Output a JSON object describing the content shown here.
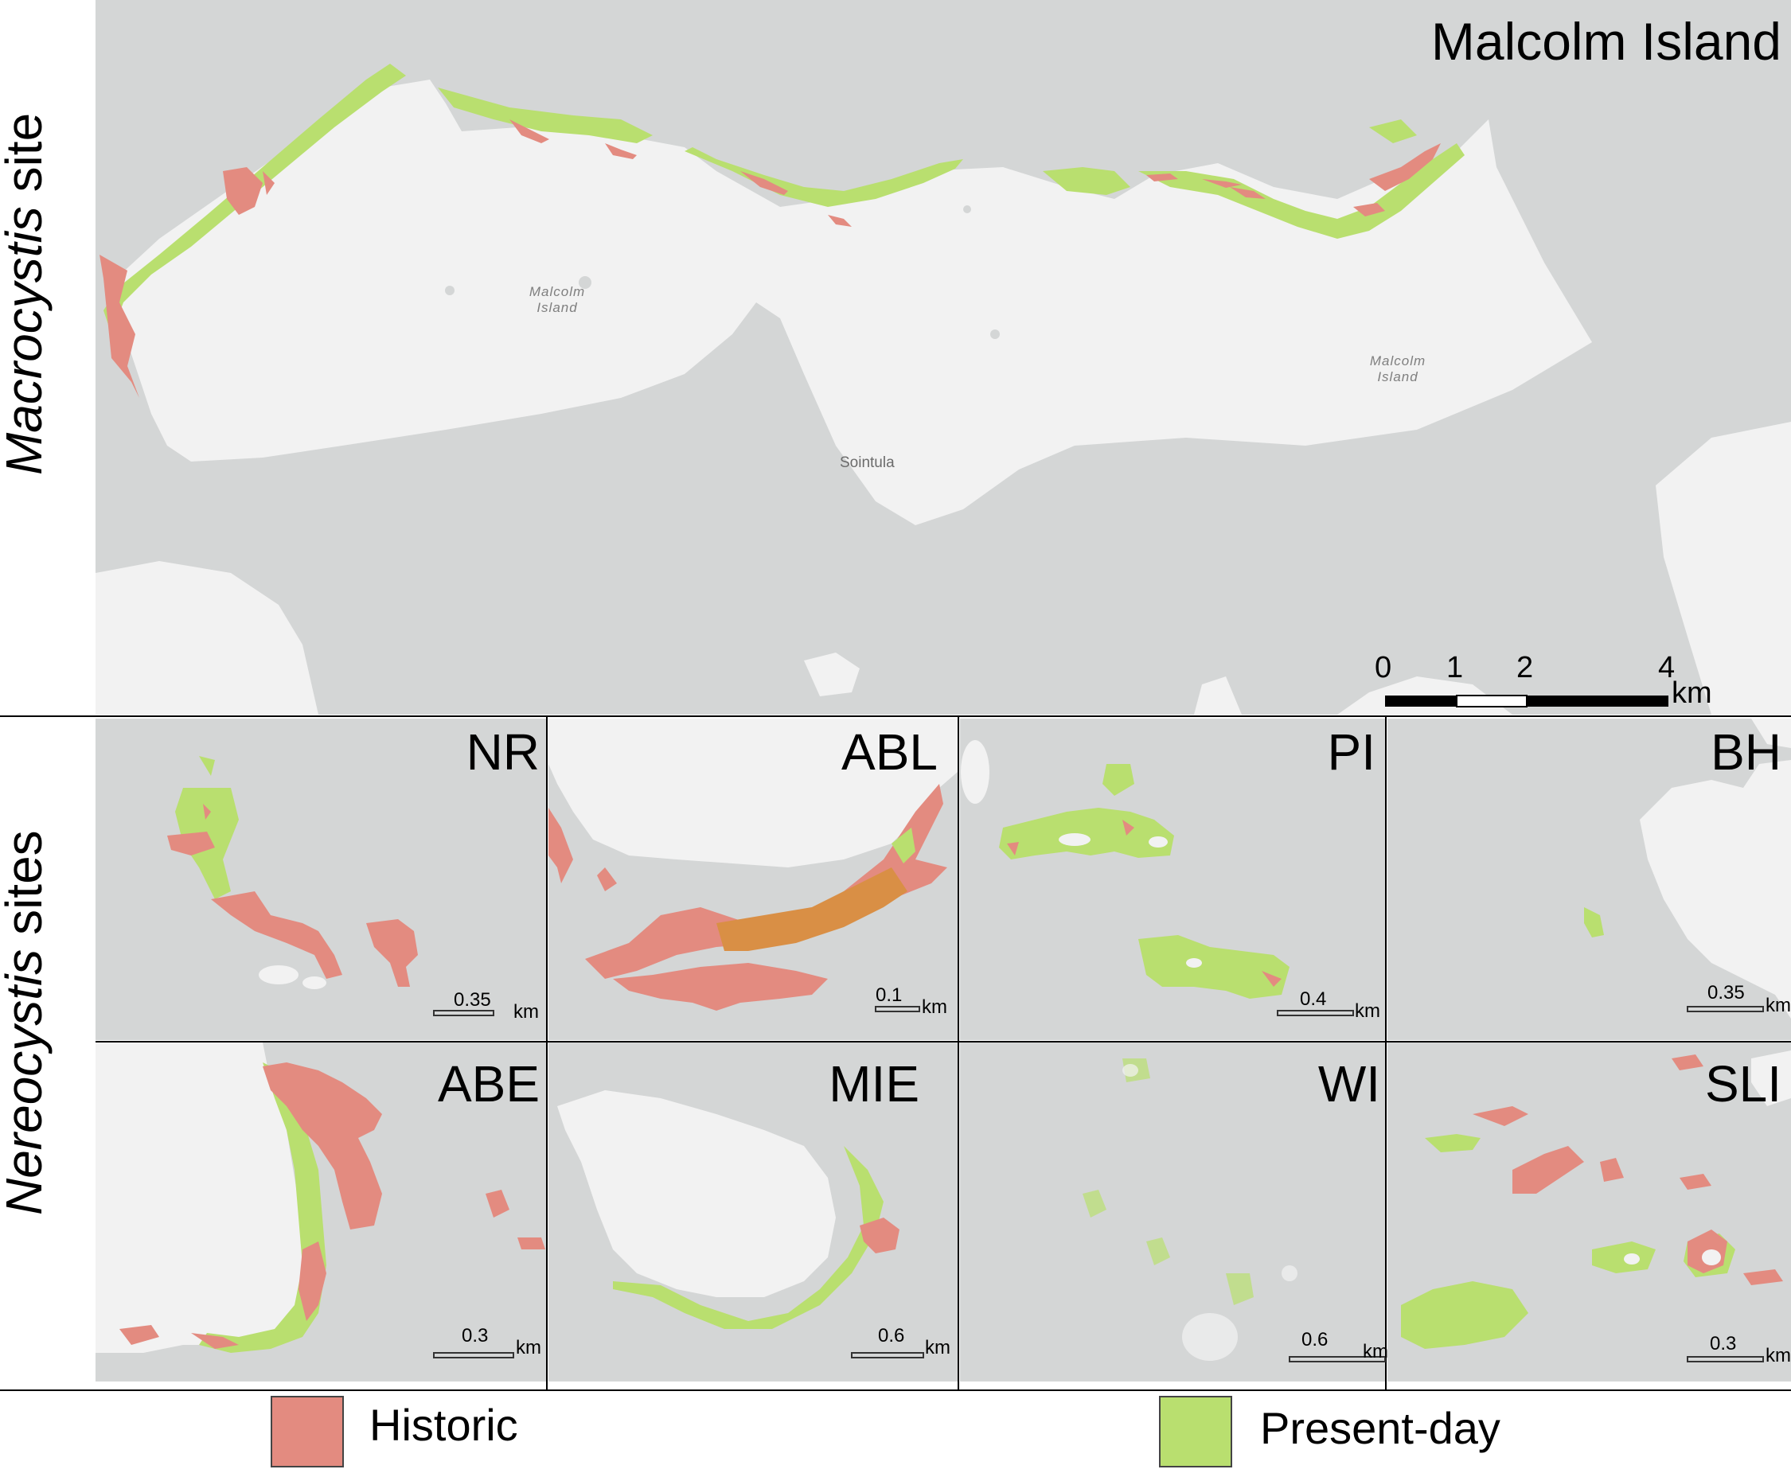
{
  "side_labels": {
    "macro_italic": "Macrocystis",
    "macro_rest": " site",
    "nereo_italic": "Nereocystis",
    "nereo_rest": " sites"
  },
  "main_map": {
    "title": "Malcolm Island",
    "place_labels": [
      "Malcolm",
      "Island",
      "Malcolm",
      "Island",
      "Sointula"
    ],
    "scale_ticks": [
      "0",
      "1",
      "2",
      "4"
    ],
    "scale_unit": "km"
  },
  "panels": [
    {
      "title": "NR",
      "scale": "0.35",
      "unit": "km"
    },
    {
      "title": "ABL",
      "scale": "0.1",
      "unit": "km"
    },
    {
      "title": "PI",
      "scale": "0.4",
      "unit": "km"
    },
    {
      "title": "BH",
      "scale": "0.35",
      "unit": "km"
    },
    {
      "title": "ABE",
      "scale": "0.3",
      "unit": "km"
    },
    {
      "title": "MIE",
      "scale": "0.6",
      "unit": "km"
    },
    {
      "title": "WI",
      "scale": "0.6",
      "unit": "km"
    },
    {
      "title": "SLI",
      "scale": "0.3",
      "unit": "km"
    }
  ],
  "legend": [
    {
      "label": "Historic",
      "color": "#e38b80"
    },
    {
      "label": "Present-day",
      "color": "#b9df6f"
    }
  ],
  "colors": {
    "water": "#d4d6d6",
    "land": "#f2f2f2",
    "historic": "#e38b80",
    "present": "#b9df6f",
    "overlap": "#d98f45"
  }
}
